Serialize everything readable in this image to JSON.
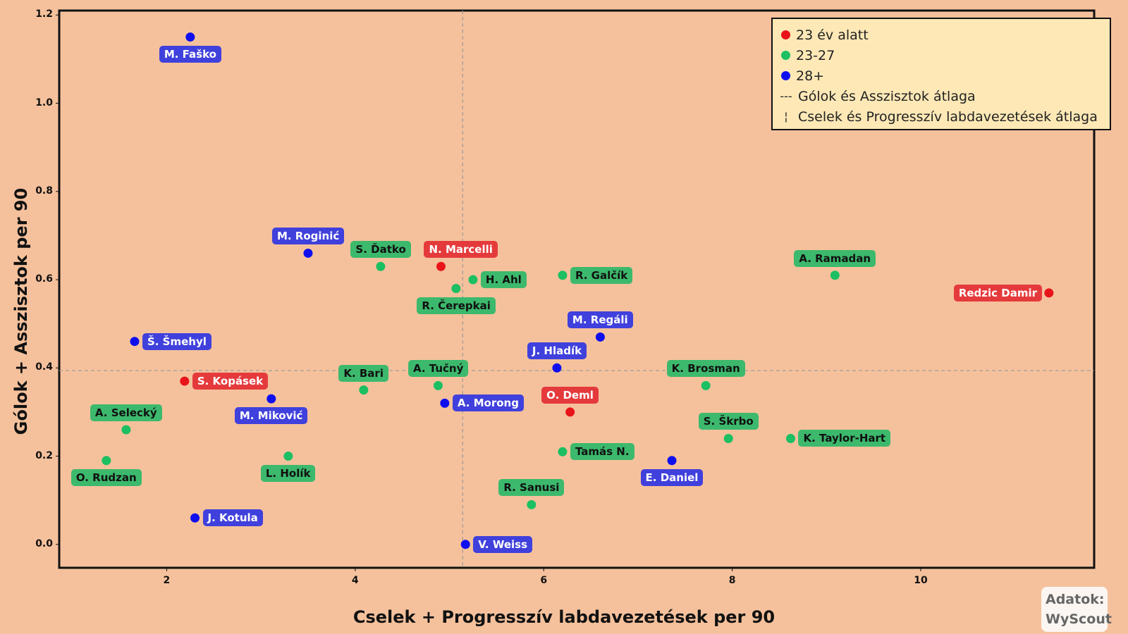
{
  "chart_data": {
    "type": "scatter",
    "xlabel": "Cselek + Progresszív labdavezetések per 90",
    "ylabel": "Gólok + Asszisztok  per 90",
    "xlim": [
      0.86,
      11.84
    ],
    "ylim": [
      -0.053,
      1.21
    ],
    "xticks": [
      2,
      4,
      6,
      8,
      10
    ],
    "yticks": [
      0.0,
      0.2,
      0.4,
      0.6,
      0.8,
      1.0,
      1.2
    ],
    "xtick_labels": [
      "2",
      "4",
      "6",
      "8",
      "10"
    ],
    "ytick_labels": [
      "0.0",
      "0.2",
      "0.4",
      "0.6",
      "0.8",
      "1.0",
      "1.2"
    ],
    "grid": false,
    "mean_x": 5.14,
    "mean_y": 0.394,
    "legend_placement": "top-right",
    "legend": [
      {
        "label": "23 év alatt",
        "group": "u23"
      },
      {
        "label": "23-27",
        "group": "mid"
      },
      {
        "label": "28+",
        "group": "old"
      },
      {
        "label": "Gólok és Asszisztok átlaga",
        "symbol": "---"
      },
      {
        "label": "Cselek és Progresszív labdavezetések átlaga",
        "symbol": "¦"
      }
    ],
    "colors": {
      "u23": {
        "dot": "#e8141a",
        "label": "#e53a3c"
      },
      "mid": {
        "dot": "#1cbf62",
        "label": "#3cb96c"
      },
      "old": {
        "dot": "#0f0fee",
        "label": "#4040dc"
      }
    },
    "points": [
      {
        "name": "M. Faško",
        "x": 2.25,
        "y": 1.15,
        "group": "old",
        "label_pos": "below"
      },
      {
        "name": "M. Roginić",
        "x": 3.5,
        "y": 0.66,
        "group": "old",
        "label_pos": "above"
      },
      {
        "name": "S. Ďatko",
        "x": 4.27,
        "y": 0.63,
        "group": "mid",
        "label_pos": "above"
      },
      {
        "name": "N. Marcelli",
        "x": 4.91,
        "y": 0.63,
        "group": "u23",
        "label_pos": "above-right"
      },
      {
        "name": "R. Čerepkai",
        "x": 5.07,
        "y": 0.58,
        "group": "mid",
        "label_pos": "below"
      },
      {
        "name": "H. Ahl",
        "x": 5.25,
        "y": 0.6,
        "group": "mid",
        "label_pos": "right"
      },
      {
        "name": "R. Galčík",
        "x": 6.2,
        "y": 0.61,
        "group": "mid",
        "label_pos": "right"
      },
      {
        "name": "A. Ramadan",
        "x": 9.09,
        "y": 0.61,
        "group": "mid",
        "label_pos": "above"
      },
      {
        "name": "Redzic Damir",
        "x": 11.36,
        "y": 0.57,
        "group": "u23",
        "label_pos": "left"
      },
      {
        "name": "M. Regáli",
        "x": 6.6,
        "y": 0.47,
        "group": "old",
        "label_pos": "above"
      },
      {
        "name": "Š. Šmehyl",
        "x": 1.66,
        "y": 0.46,
        "group": "old",
        "label_pos": "right"
      },
      {
        "name": "J. Hladík",
        "x": 6.14,
        "y": 0.4,
        "group": "old",
        "label_pos": "above"
      },
      {
        "name": "S. Kopásek",
        "x": 2.19,
        "y": 0.37,
        "group": "u23",
        "label_pos": "right"
      },
      {
        "name": "K. Bari",
        "x": 4.09,
        "y": 0.35,
        "group": "mid",
        "label_pos": "above"
      },
      {
        "name": "A. Tučný",
        "x": 4.88,
        "y": 0.36,
        "group": "mid",
        "label_pos": "above"
      },
      {
        "name": "M. Miković",
        "x": 3.11,
        "y": 0.33,
        "group": "old",
        "label_pos": "below"
      },
      {
        "name": "A. Morong",
        "x": 4.95,
        "y": 0.32,
        "group": "old",
        "label_pos": "right"
      },
      {
        "name": "O. Deml",
        "x": 6.28,
        "y": 0.3,
        "group": "u23",
        "label_pos": "above"
      },
      {
        "name": "K. Brosman",
        "x": 7.72,
        "y": 0.36,
        "group": "mid",
        "label_pos": "above"
      },
      {
        "name": "A. Selecký",
        "x": 1.57,
        "y": 0.26,
        "group": "mid",
        "label_pos": "above"
      },
      {
        "name": "S. Škrbo",
        "x": 7.96,
        "y": 0.24,
        "group": "mid",
        "label_pos": "above"
      },
      {
        "name": "K. Taylor-Hart",
        "x": 8.62,
        "y": 0.24,
        "group": "mid",
        "label_pos": "right"
      },
      {
        "name": "L. Holík",
        "x": 3.29,
        "y": 0.2,
        "group": "mid",
        "label_pos": "below"
      },
      {
        "name": "O. Rudzan",
        "x": 1.36,
        "y": 0.19,
        "group": "mid",
        "label_pos": "below"
      },
      {
        "name": "Tamás N.",
        "x": 6.2,
        "y": 0.21,
        "group": "mid",
        "label_pos": "right"
      },
      {
        "name": "E. Daniel",
        "x": 7.36,
        "y": 0.19,
        "group": "old",
        "label_pos": "below"
      },
      {
        "name": "R. Sanusi",
        "x": 5.87,
        "y": 0.09,
        "group": "mid",
        "label_pos": "above"
      },
      {
        "name": "J. Kotula",
        "x": 2.3,
        "y": 0.06,
        "group": "old",
        "label_pos": "right"
      },
      {
        "name": "V. Weiss",
        "x": 5.17,
        "y": 0.0,
        "group": "old",
        "label_pos": "right"
      }
    ]
  },
  "source": {
    "line1": "Adatok:",
    "line2": "WyScout"
  }
}
